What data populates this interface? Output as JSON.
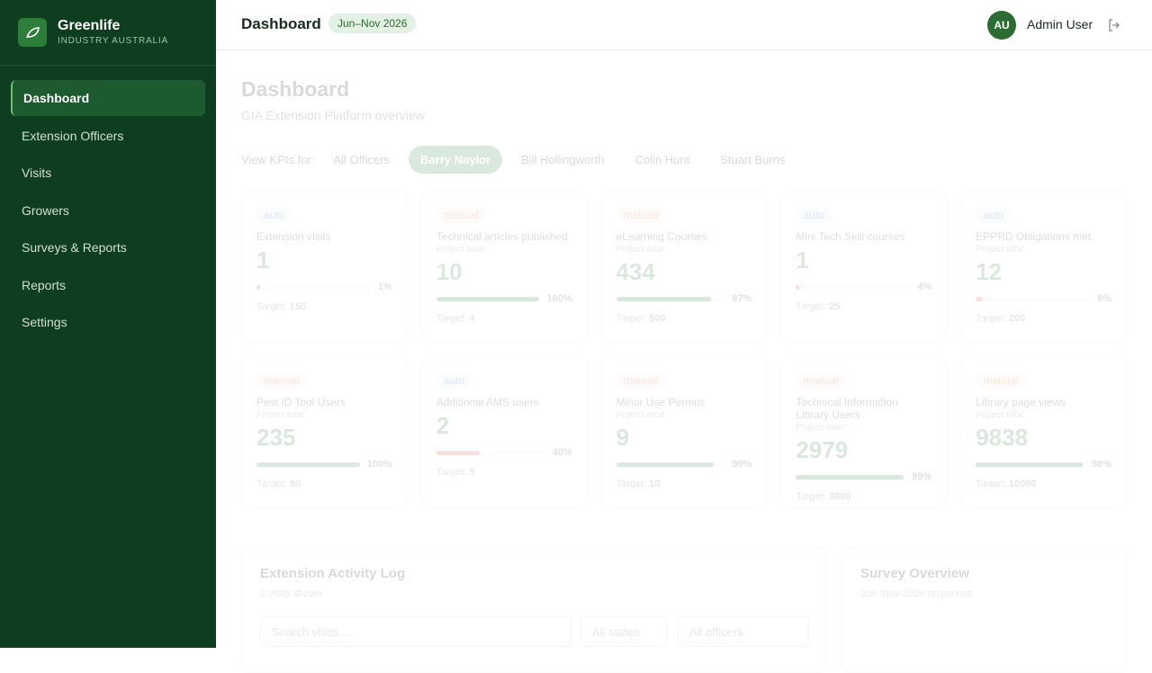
{
  "sidebar": {
    "brand": "Greenlife",
    "subtitle": "INDUSTRY AUSTRALIA",
    "nav": [
      "Dashboard",
      "Extension Officers",
      "Visits",
      "Growers",
      "Surveys & Reports",
      "Reports",
      "Settings"
    ]
  },
  "header": {
    "title": "Dashboard",
    "period": "Jun–Nov 2026",
    "avatar": "AU",
    "user": "Admin User"
  },
  "page": {
    "title": "Dashboard",
    "subtitle": "GIA Extension Platform overview"
  },
  "filter": {
    "label": "View KPIs for:",
    "options": [
      "All Officers",
      "Barry Naylor",
      "Bill Hollingworth",
      "Colin Hunt",
      "Stuart Burns"
    ],
    "selected": 1
  },
  "target_label": "Target:",
  "kpis": [
    {
      "tag": "auto",
      "name": "Extension visits",
      "value": 1,
      "progress": {
        "value": 1,
        "label": "1%"
      },
      "target": 150
    },
    {
      "tag": "manual",
      "name": "Technical articles published",
      "note": "Project total",
      "value": 10,
      "progress": {
        "value": 100,
        "label": "100%"
      },
      "target": 4
    },
    {
      "tag": "manual",
      "name": "eLearning Courses",
      "note": "Project total",
      "value": 434,
      "progress": {
        "value": 87,
        "label": "87%"
      },
      "target": 500
    },
    {
      "tag": "auto",
      "name": "Mini Tech Skill courses",
      "value": 1,
      "progress": {
        "value": 4,
        "label": "4%"
      },
      "target": 25
    },
    {
      "tag": "auto",
      "name": "EPPRD Obligations met",
      "note": "Project total",
      "value": 12,
      "progress": {
        "value": 6,
        "label": "6%"
      },
      "target": 200
    },
    {
      "tag": "manual",
      "name": "Pest ID Tool Users",
      "note": "Project total",
      "value": 235,
      "progress": {
        "value": 100,
        "label": "100%"
      },
      "target": 50
    },
    {
      "tag": "auto",
      "name": "Additional AMS users",
      "value": 2,
      "progress": {
        "value": 40,
        "label": "40%"
      },
      "target": 5
    },
    {
      "tag": "manual",
      "name": "Minor Use Permits",
      "note": "Project total",
      "value": 9,
      "progress": {
        "value": 90,
        "label": "90%"
      },
      "target": 10
    },
    {
      "tag": "manual",
      "name": "Technical Information Library Users",
      "note": "Project total",
      "value": 2979,
      "progress": {
        "value": 99,
        "label": "99%"
      },
      "target": 3000
    },
    {
      "tag": "manual",
      "name": "Library page views",
      "note": "Project total",
      "value": 9838,
      "progress": {
        "value": 98,
        "label": "98%"
      },
      "target": 10000
    }
  ],
  "activity": {
    "title": "Extension Activity Log",
    "subtitle": "2 visits shown",
    "search": "Search visits...",
    "states": "All states",
    "officers": "All officers"
  },
  "survey": {
    "title": "Survey Overview",
    "subtitle": "Jun–Nov 2026 responses"
  }
}
